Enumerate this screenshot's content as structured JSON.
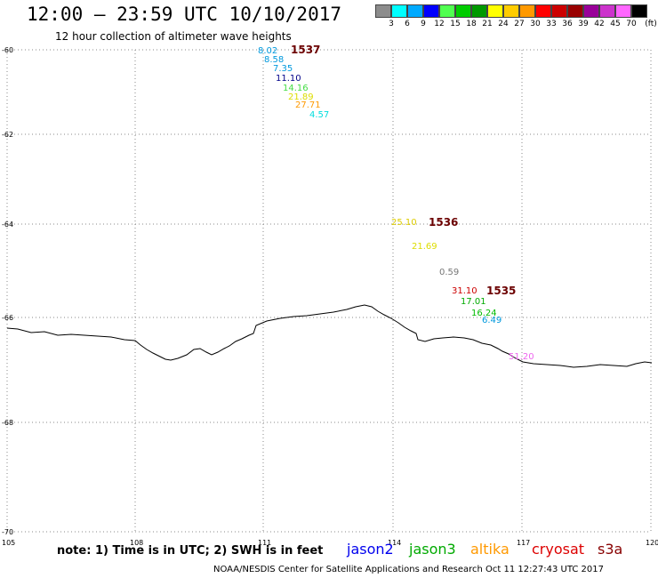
{
  "header": {
    "title": "12:00 – 23:59 UTC 10/10/2017",
    "subtitle": "12 hour collection of altimeter wave heights"
  },
  "colorbar": {
    "colors": [
      "#8c8c8c",
      "#00ffff",
      "#00aaff",
      "#0000ff",
      "#50ff50",
      "#00cc00",
      "#009900",
      "#ffff00",
      "#ffcc00",
      "#ff9900",
      "#ff0000",
      "#cc0000",
      "#990000",
      "#990099",
      "#cc33cc",
      "#ff66ff",
      "#000000"
    ],
    "labels": [
      "3",
      "6",
      "9",
      "12",
      "15",
      "18",
      "21",
      "24",
      "27",
      "30",
      "33",
      "36",
      "39",
      "42",
      "45",
      "70",
      "(ft)"
    ]
  },
  "map": {
    "lat_ticks": [
      "-60",
      "-62",
      "-64",
      "-66",
      "-68",
      "-70"
    ],
    "lon_ticks": [
      "105",
      "108",
      "111",
      "114",
      "117",
      "120"
    ],
    "track_labels": [
      "1537",
      "1536",
      "1535"
    ],
    "swh": [
      {
        "text": "8.02",
        "color": "#0099dd"
      },
      {
        "text": "8.58",
        "color": "#0099dd"
      },
      {
        "text": "7.35",
        "color": "#0099dd"
      },
      {
        "text": "11.10",
        "color": "#000088"
      },
      {
        "text": "14.16",
        "color": "#44dd44"
      },
      {
        "text": "21.89",
        "color": "#dddd00"
      },
      {
        "text": "27.71",
        "color": "#ff9900"
      },
      {
        "text": "4.57",
        "color": "#00dddd"
      },
      {
        "text": "25.10",
        "color": "#ddcc00"
      },
      {
        "text": "21.69",
        "color": "#dddd00"
      },
      {
        "text": "0.59",
        "color": "#777777"
      },
      {
        "text": "31.10",
        "color": "#cc0000"
      },
      {
        "text": "17.01",
        "color": "#00aa00"
      },
      {
        "text": "16.24",
        "color": "#00bb00"
      },
      {
        "text": "6.49",
        "color": "#0099dd"
      },
      {
        "text": "51.20",
        "color": "#ee66ee"
      }
    ]
  },
  "footer": {
    "note": "note:  1) Time is in UTC;  2) SWH is in feet",
    "satellites": [
      {
        "name": "jason2",
        "color": "#0000ee"
      },
      {
        "name": "jason3",
        "color": "#00aa00"
      },
      {
        "name": "altika",
        "color": "#ff9900"
      },
      {
        "name": "cryosat",
        "color": "#dd0000"
      },
      {
        "name": "s3a",
        "color": "#880000"
      }
    ],
    "credit": "NOAA/NESDIS Center for Satellite Applications and Research    Oct 11 12:27:43 UTC 2017"
  }
}
